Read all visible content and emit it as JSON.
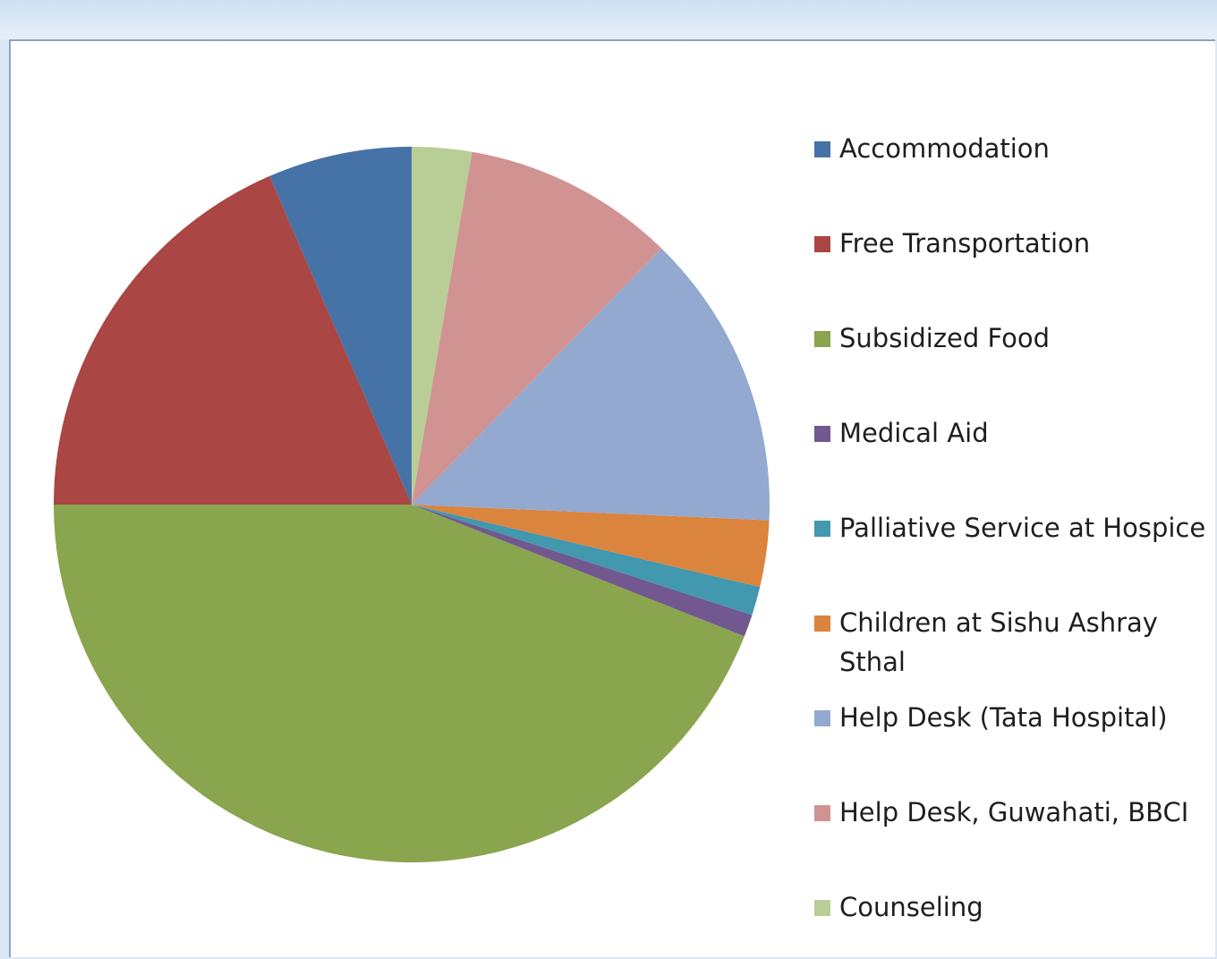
{
  "chart_data": {
    "type": "pie",
    "title": "",
    "legend_position": "right",
    "slices": [
      {
        "label": "Accommodation",
        "value": 6.5,
        "color": "#4572a7"
      },
      {
        "label": "Free Transportation",
        "value": 18.5,
        "color": "#aa4643"
      },
      {
        "label": "Subsidized Food",
        "value": 44.0,
        "color": "#89a54e"
      },
      {
        "label": "Medical Aid",
        "value": 1.0,
        "color": "#71588f"
      },
      {
        "label": "Palliative Service at Hospice",
        "value": 1.3,
        "color": "#4198af"
      },
      {
        "label": "Children at Sishu Ashray Sthal",
        "value": 3.0,
        "color": "#db843d"
      },
      {
        "label": "Help Desk (Tata Hospital)",
        "value": 13.4,
        "color": "#93a9cf"
      },
      {
        "label": "Help Desk, Guwahati, BBCI",
        "value": 9.6,
        "color": "#d19392"
      },
      {
        "label": "Counseling",
        "value": 2.7,
        "color": "#b9cd96"
      }
    ]
  }
}
